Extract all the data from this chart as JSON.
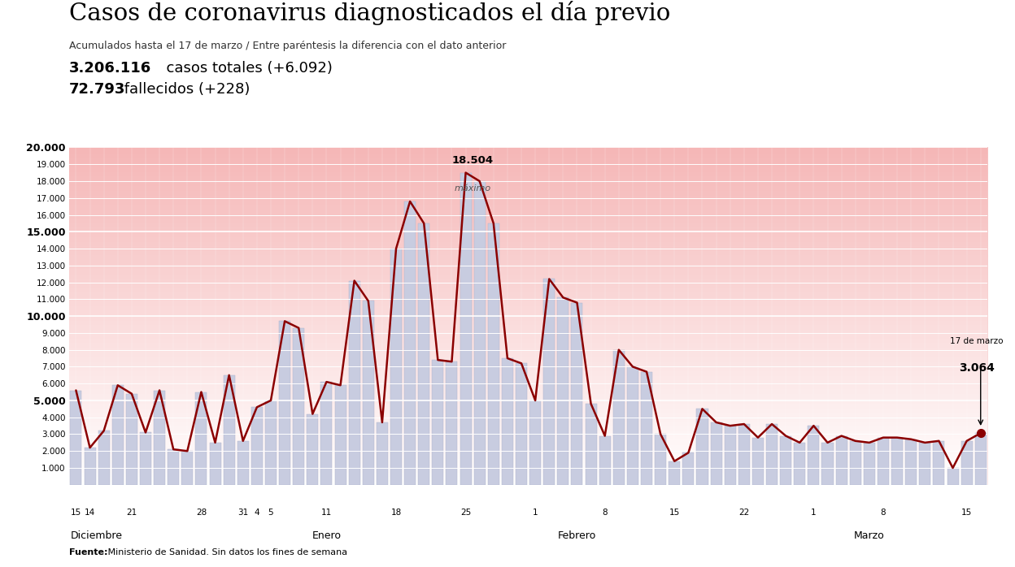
{
  "title": "Casos de coronavirus diagnosticados el día previo",
  "subtitle": "Acumulados hasta el 17 de marzo / Entre paréntesis la diferencia con el dato anterior",
  "stat1_bold": "3.206.116",
  "stat1_rest": "  casos totales (+6.092)",
  "stat2_bold": "72.793",
  "stat2_rest": " fallecidos (+228)",
  "source_bold": "Fuente:",
  "source_rest": " Ministerio de Sanidad. Sin datos los fines de semana",
  "ylim": [
    0,
    20000
  ],
  "yticks": [
    1000,
    2000,
    3000,
    4000,
    5000,
    6000,
    7000,
    8000,
    9000,
    10000,
    11000,
    12000,
    13000,
    14000,
    15000,
    16000,
    17000,
    18000,
    19000,
    20000
  ],
  "ytick_bold": [
    5000,
    10000,
    15000,
    20000
  ],
  "bar_color": "#c8cce0",
  "bar_edge_color": "#b0b5cc",
  "line_color": "#8b0000",
  "line_width": 1.8,
  "marker_color": "#8b0000",
  "values": [
    5600,
    2200,
    3200,
    5900,
    5400,
    3100,
    5600,
    2100,
    2000,
    5500,
    2500,
    6500,
    2600,
    4600,
    5000,
    9700,
    9300,
    4200,
    6100,
    5900,
    12100,
    10900,
    3700,
    14000,
    16800,
    15500,
    7400,
    7300,
    18504,
    18000,
    15500,
    7500,
    7200,
    5000,
    12200,
    11100,
    10800,
    4800,
    2900,
    8000,
    7000,
    6700,
    3000,
    1400,
    1900,
    4500,
    3700,
    3500,
    3600,
    2800,
    3600,
    2900,
    2500,
    3500,
    2500,
    2900,
    2600,
    2500,
    2800,
    2800,
    2700,
    2500,
    2600,
    1000,
    2600,
    3064
  ],
  "max_val": 18504,
  "max_idx": 28,
  "last_val": 3064,
  "last_label": "17 de marzo",
  "max_annotation": "18.504",
  "max_sublabel": "máximo",
  "tick_labels_info": [
    [
      0,
      "15"
    ],
    [
      1,
      "14"
    ],
    [
      4,
      "21"
    ],
    [
      9,
      "28"
    ],
    [
      12,
      "31"
    ],
    [
      13,
      "4"
    ],
    [
      14,
      "5"
    ],
    [
      18,
      "11"
    ],
    [
      23,
      "18"
    ],
    [
      28,
      "25"
    ],
    [
      33,
      "1"
    ],
    [
      38,
      "8"
    ],
    [
      43,
      "15"
    ],
    [
      48,
      "22"
    ],
    [
      53,
      "1"
    ],
    [
      58,
      "8"
    ],
    [
      64,
      "15"
    ]
  ],
  "month_positions": [
    [
      1.5,
      "Diciembre"
    ],
    [
      18.0,
      "Enero"
    ],
    [
      36.0,
      "Febrero"
    ],
    [
      57.0,
      "Marzo"
    ]
  ]
}
